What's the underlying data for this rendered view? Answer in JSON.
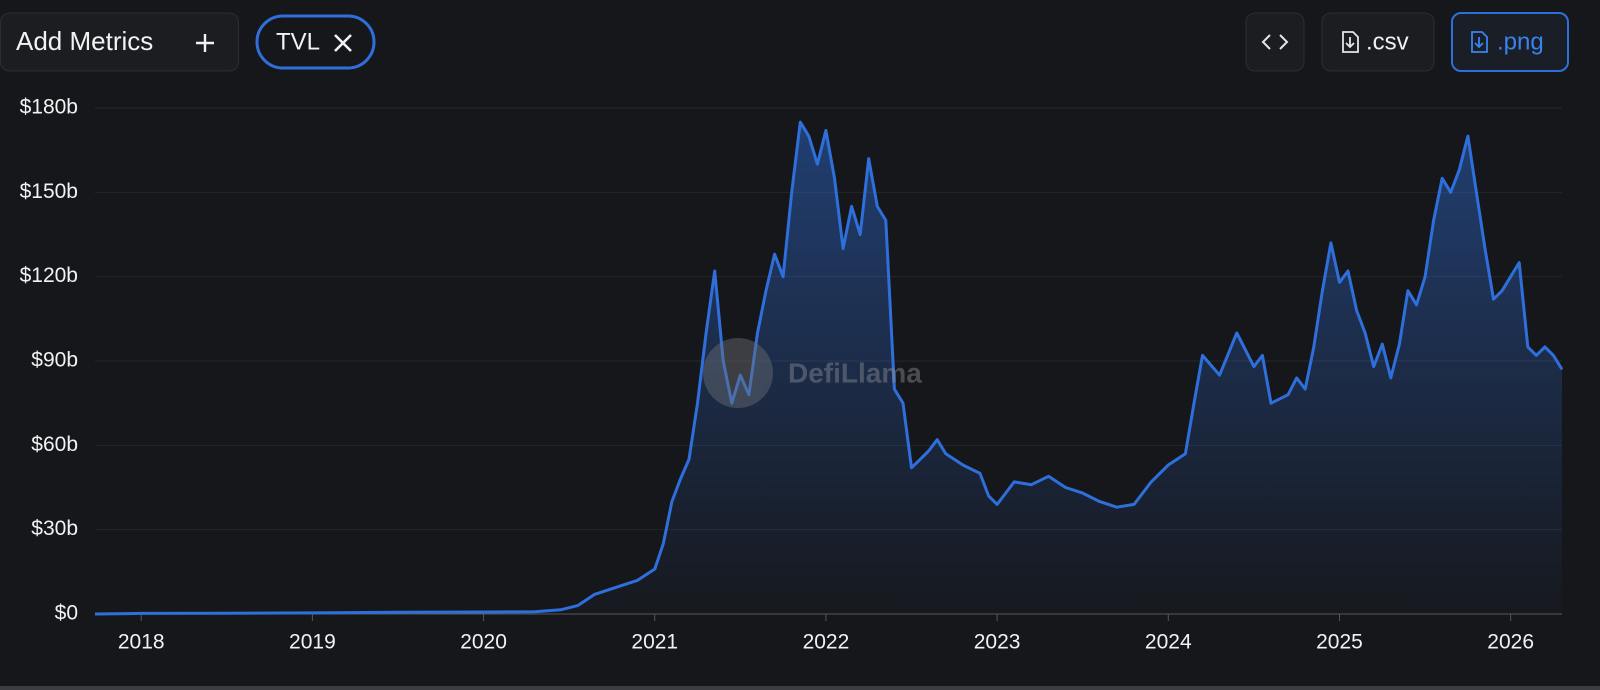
{
  "toolbar": {
    "add_metrics": "Add Metrics",
    "csv": ".csv",
    "png": ".png"
  },
  "watermark": "DefiLlama",
  "chart_data": {
    "type": "area",
    "x": [
      2017.73,
      2018.0,
      2018.5,
      2019.0,
      2019.5,
      2020.0,
      2020.3,
      2020.45,
      2020.55,
      2020.65,
      2020.75,
      2020.9,
      2021.0,
      2021.05,
      2021.1,
      2021.15,
      2021.2,
      2021.25,
      2021.3,
      2021.35,
      2021.4,
      2021.45,
      2021.5,
      2021.55,
      2021.6,
      2021.65,
      2021.7,
      2021.75,
      2021.8,
      2021.85,
      2021.9,
      2021.95,
      2022.0,
      2022.05,
      2022.1,
      2022.15,
      2022.2,
      2022.25,
      2022.3,
      2022.35,
      2022.4,
      2022.45,
      2022.5,
      2022.55,
      2022.6,
      2022.65,
      2022.7,
      2022.8,
      2022.9,
      2022.95,
      2023.0,
      2023.1,
      2023.2,
      2023.3,
      2023.4,
      2023.5,
      2023.6,
      2023.7,
      2023.8,
      2023.9,
      2024.0,
      2024.1,
      2024.15,
      2024.2,
      2024.3,
      2024.4,
      2024.5,
      2024.55,
      2024.6,
      2024.7,
      2024.75,
      2024.8,
      2024.85,
      2024.9,
      2024.95,
      2025.0,
      2025.05,
      2025.1,
      2025.15,
      2025.2,
      2025.25,
      2025.3,
      2025.35,
      2025.4,
      2025.45,
      2025.5,
      2025.55,
      2025.6,
      2025.65,
      2025.7,
      2025.75,
      2025.8,
      2025.85,
      2025.9,
      2025.95,
      2026.0,
      2026.05,
      2026.1,
      2026.15,
      2026.2,
      2026.25,
      2026.3
    ],
    "series": [
      {
        "name": "TVL",
        "color": "#2f6fdc",
        "values": [
          0,
          0.2,
          0.3,
          0.4,
          0.6,
          0.7,
          0.8,
          1.5,
          3,
          7,
          9,
          12,
          16,
          25,
          40,
          48,
          55,
          75,
          100,
          122,
          90,
          75,
          85,
          78,
          100,
          115,
          128,
          120,
          150,
          175,
          170,
          160,
          172,
          155,
          130,
          145,
          135,
          162,
          145,
          140,
          80,
          75,
          52,
          55,
          58,
          62,
          57,
          53,
          50,
          42,
          39,
          47,
          46,
          49,
          45,
          43,
          40,
          38,
          39,
          47,
          53,
          57,
          75,
          92,
          85,
          100,
          88,
          92,
          75,
          78,
          84,
          80,
          95,
          115,
          132,
          118,
          122,
          108,
          100,
          88,
          96,
          84,
          96,
          115,
          110,
          120,
          140,
          155,
          150,
          158,
          170,
          150,
          130,
          112,
          115,
          120,
          125,
          95,
          92,
          95,
          92,
          87
        ]
      }
    ],
    "xlim": [
      2017.73,
      2026.3
    ],
    "xticks": [
      2018,
      2019,
      2020,
      2021,
      2022,
      2023,
      2024,
      2025,
      2026
    ],
    "ylim": [
      0,
      180
    ],
    "yticks": [
      {
        "value": 0,
        "label": "$0"
      },
      {
        "value": 30,
        "label": "$30b"
      },
      {
        "value": 60,
        "label": "$60b"
      },
      {
        "value": 90,
        "label": "$90b"
      },
      {
        "value": 120,
        "label": "$120b"
      },
      {
        "value": 150,
        "label": "$150b"
      },
      {
        "value": 180,
        "label": "$180b"
      }
    ],
    "grid": true
  }
}
